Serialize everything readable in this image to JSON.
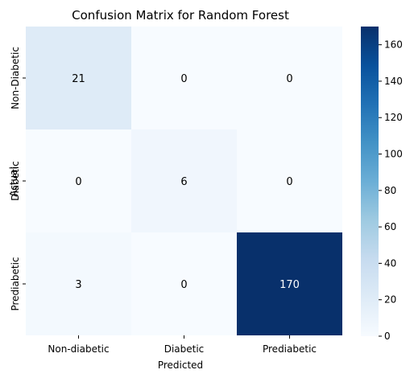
{
  "chart_data": {
    "type": "heatmap",
    "title": "Confusion Matrix for Random Forest",
    "xlabel": "Predicted",
    "ylabel": "Actual",
    "x_categories": [
      "Non-diabetic",
      "Diabetic",
      "Prediabetic"
    ],
    "y_categories": [
      "Non-Diabetic",
      "Diabetic",
      "Prediabetic"
    ],
    "values": [
      [
        21,
        0,
        0
      ],
      [
        0,
        6,
        0
      ],
      [
        3,
        0,
        170
      ]
    ],
    "colorbar": {
      "range": [
        0,
        170
      ],
      "ticks": [
        0,
        20,
        40,
        60,
        80,
        100,
        120,
        140,
        160
      ]
    },
    "colormap": [
      "#f7fbff",
      "#deebf7",
      "#c6dbef",
      "#9ecae1",
      "#6baed6",
      "#4292c6",
      "#2171b5",
      "#08519c",
      "#08306b"
    ],
    "grid": false
  }
}
